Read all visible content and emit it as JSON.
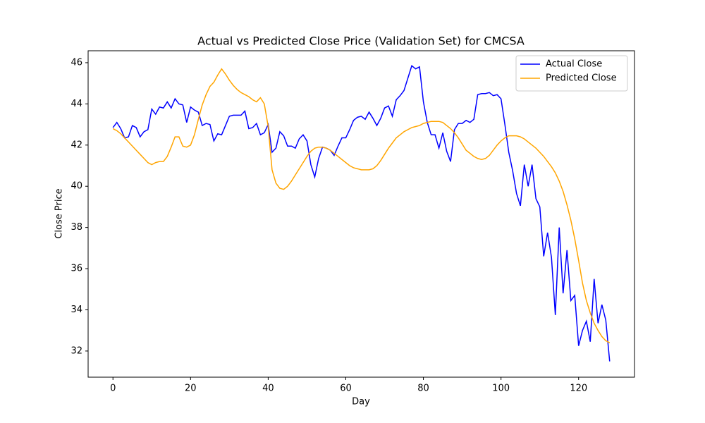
{
  "chart_data": {
    "type": "line",
    "title": "Actual vs Predicted Close Price (Validation Set) for CMCSA",
    "xlabel": "Day",
    "ylabel": "Close Price",
    "x": [
      0,
      1,
      2,
      3,
      4,
      5,
      6,
      7,
      8,
      9,
      10,
      11,
      12,
      13,
      14,
      15,
      16,
      17,
      18,
      19,
      20,
      21,
      22,
      23,
      24,
      25,
      26,
      27,
      28,
      29,
      30,
      31,
      32,
      33,
      34,
      35,
      36,
      37,
      38,
      39,
      40,
      41,
      42,
      43,
      44,
      45,
      46,
      47,
      48,
      49,
      50,
      51,
      52,
      53,
      54,
      55,
      56,
      57,
      58,
      59,
      60,
      61,
      62,
      63,
      64,
      65,
      66,
      67,
      68,
      69,
      70,
      71,
      72,
      73,
      74,
      75,
      76,
      77,
      78,
      79,
      80,
      81,
      82,
      83,
      84,
      85,
      86,
      87,
      88,
      89,
      90,
      91,
      92,
      93,
      94,
      95,
      96,
      97,
      98,
      99,
      100,
      101,
      102,
      103,
      104,
      105,
      106,
      107,
      108,
      109,
      110,
      111,
      112,
      113,
      114,
      115,
      116,
      117,
      118,
      119,
      120,
      121,
      122,
      123,
      124,
      125,
      126,
      127,
      128
    ],
    "series": [
      {
        "name": "Actual Close",
        "color": "#0000ff",
        "values": [
          42.85,
          43.1,
          42.8,
          42.35,
          42.4,
          42.95,
          42.85,
          42.4,
          42.65,
          42.75,
          43.75,
          43.5,
          43.85,
          43.8,
          44.1,
          43.8,
          44.25,
          44.0,
          43.95,
          43.1,
          43.85,
          43.7,
          43.6,
          42.95,
          43.05,
          43.0,
          42.2,
          42.55,
          42.5,
          42.95,
          43.4,
          43.45,
          43.45,
          43.45,
          43.65,
          42.8,
          42.85,
          43.05,
          42.5,
          42.6,
          43.0,
          41.65,
          41.85,
          42.65,
          42.45,
          41.95,
          41.95,
          41.85,
          42.3,
          42.5,
          42.2,
          41.05,
          40.45,
          41.35,
          41.9,
          41.85,
          41.75,
          41.5,
          41.95,
          42.35,
          42.35,
          42.75,
          43.2,
          43.35,
          43.4,
          43.25,
          43.6,
          43.3,
          42.95,
          43.3,
          43.8,
          43.9,
          43.4,
          44.2,
          44.4,
          44.65,
          45.25,
          45.85,
          45.7,
          45.8,
          44.1,
          43.1,
          42.5,
          42.5,
          41.85,
          42.6,
          41.7,
          41.2,
          42.75,
          43.05,
          43.05,
          43.2,
          43.1,
          43.25,
          44.45,
          44.5,
          44.5,
          44.55,
          44.4,
          44.45,
          44.25,
          43.0,
          41.65,
          40.75,
          39.65,
          39.05,
          41.05,
          40.0,
          41.05,
          39.4,
          39.0,
          36.6,
          37.75,
          36.55,
          33.75,
          38.0,
          34.8,
          36.9,
          34.45,
          34.7,
          32.25,
          33.0,
          33.45,
          32.45,
          35.5,
          33.35,
          34.25,
          33.5,
          31.5
        ]
      },
      {
        "name": "Predicted Close",
        "color": "#ffa500",
        "values": [
          42.8,
          42.7,
          42.55,
          42.35,
          42.15,
          41.95,
          41.75,
          41.55,
          41.35,
          41.15,
          41.05,
          41.15,
          41.2,
          41.2,
          41.45,
          41.9,
          42.4,
          42.4,
          41.95,
          41.9,
          42.0,
          42.5,
          43.25,
          43.95,
          44.45,
          44.85,
          45.05,
          45.4,
          45.7,
          45.45,
          45.15,
          44.9,
          44.7,
          44.55,
          44.45,
          44.35,
          44.2,
          44.1,
          44.3,
          44.0,
          42.9,
          40.8,
          40.15,
          39.9,
          39.85,
          40.0,
          40.25,
          40.55,
          40.85,
          41.15,
          41.45,
          41.7,
          41.85,
          41.9,
          41.9,
          41.85,
          41.75,
          41.6,
          41.45,
          41.3,
          41.15,
          41.0,
          40.9,
          40.85,
          40.8,
          40.8,
          40.8,
          40.85,
          41.0,
          41.25,
          41.55,
          41.85,
          42.1,
          42.35,
          42.5,
          42.65,
          42.75,
          42.85,
          42.9,
          42.95,
          43.05,
          43.1,
          43.15,
          43.15,
          43.15,
          43.1,
          42.95,
          42.8,
          42.6,
          42.35,
          42.05,
          41.75,
          41.6,
          41.45,
          41.35,
          41.3,
          41.35,
          41.5,
          41.75,
          42.0,
          42.2,
          42.35,
          42.45,
          42.45,
          42.45,
          42.4,
          42.3,
          42.15,
          42.0,
          41.85,
          41.65,
          41.45,
          41.2,
          40.95,
          40.65,
          40.25,
          39.75,
          39.1,
          38.35,
          37.45,
          36.4,
          35.3,
          34.45,
          33.85,
          33.35,
          33.0,
          32.7,
          32.5,
          32.4
        ]
      }
    ],
    "xlim": [
      -6.4,
      134.4
    ],
    "xticks": [
      0,
      20,
      40,
      60,
      80,
      100,
      120
    ],
    "ylim": [
      30.73,
      46.58
    ],
    "yticks": [
      32,
      34,
      36,
      38,
      40,
      42,
      44,
      46
    ],
    "legend": "upper right",
    "grid": false
  }
}
